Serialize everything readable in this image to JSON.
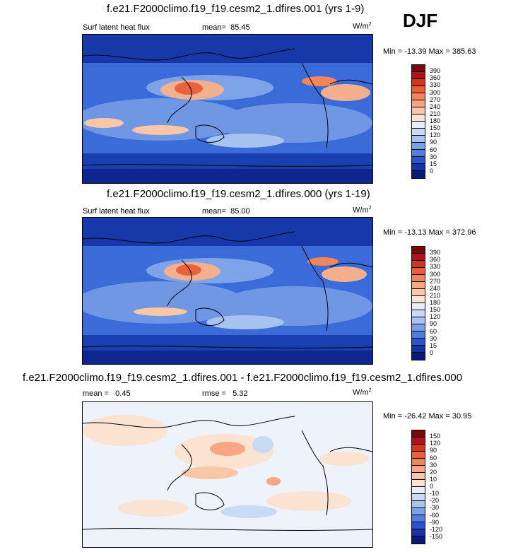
{
  "season": "DJF",
  "panels": [
    {
      "title": "f.e21.F2000climo.f19_f19.cesm2_1.dfires.001 (yrs 1-9)",
      "left_label": "Surf latent heat flux",
      "stat_label": "mean=",
      "stat_value": "85.45",
      "stat2_label": "",
      "stat2_value": "",
      "units": "W/m",
      "units_sup": "2",
      "minmax": "Min = -13.39 Max = 385.63",
      "type": "absolute"
    },
    {
      "title": "f.e21.F2000climo.f19_f19.cesm2_1.dfires.000 (yrs 1-19)",
      "left_label": "Surf latent heat flux",
      "stat_label": "mean=",
      "stat_value": "85.00",
      "stat2_label": "",
      "stat2_value": "",
      "units": "W/m",
      "units_sup": "2",
      "minmax": "Min = -13.13 Max = 372.96",
      "type": "absolute"
    },
    {
      "title": "f.e21.F2000climo.f19_f19.cesm2_1.dfires.001 - f.e21.F2000climo.f19_f19.cesm2_1.dfires.000",
      "left_label": "mean =",
      "stat_label": "",
      "stat_value": "0.45",
      "stat2_label": "rmse =",
      "stat2_value": "5.32",
      "units": "W/m",
      "units_sup": "2",
      "minmax": "Min = -26.42 Max =  30.95",
      "type": "difference"
    }
  ],
  "colorbars": {
    "absolute": {
      "labels": [
        "390",
        "360",
        "330",
        "300",
        "270",
        "240",
        "210",
        "180",
        "150",
        "120",
        "90",
        "60",
        "30",
        "15",
        "0"
      ],
      "colors": [
        "#7a0a0a",
        "#b0141a",
        "#d2361f",
        "#e95f3a",
        "#f2865a",
        "#f6a681",
        "#f9c7a8",
        "#fbe3d2",
        "#e6eefb",
        "#c8daf6",
        "#a7c3f0",
        "#7aa2e6",
        "#4f7fdc",
        "#2a55cc",
        "#1632a8",
        "#0a1a7a"
      ]
    },
    "difference": {
      "labels": [
        "150",
        "120",
        "90",
        "60",
        "30",
        "20",
        "10",
        "0",
        "-10",
        "-20",
        "-30",
        "-60",
        "-90",
        "-120",
        "-150"
      ],
      "colors": [
        "#7a0a0a",
        "#b0141a",
        "#d2361f",
        "#e95f3a",
        "#f2865a",
        "#f6a681",
        "#f9c7a8",
        "#fbe3d2",
        "#e6eefb",
        "#c8daf6",
        "#a7c3f0",
        "#7aa2e6",
        "#4f7fdc",
        "#2a55cc",
        "#1632a8",
        "#0a1a7a"
      ]
    }
  }
}
